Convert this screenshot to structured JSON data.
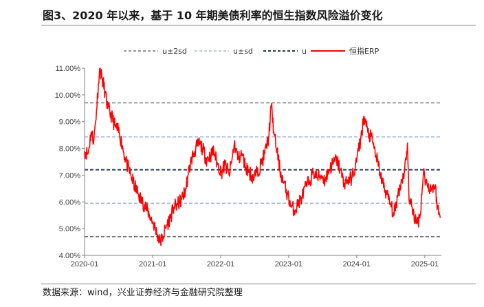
{
  "title": "图3、2020 年以来，基于 10 年期美债利率的恒生指数风险溢价变化",
  "source": "数据来源：wind，兴业证券经济与金融研究院整理",
  "chart_data": {
    "type": "line",
    "title": "图3、2020 年以来，基于 10 年期美债利率的恒生指数风险溢价变化",
    "x_ticks": [
      "2020-01",
      "2021-01",
      "2022-01",
      "2023-01",
      "2024-01",
      "2025-01"
    ],
    "y_ticks": [
      "4.00%",
      "5.00%",
      "6.00%",
      "7.00%",
      "8.00%",
      "9.00%",
      "10.00%",
      "11.00%"
    ],
    "ylim": [
      4.0,
      11.0
    ],
    "xlim": [
      "2020-01-01",
      "2025-03-31"
    ],
    "grid": false,
    "legend_position": "top",
    "legend": [
      "u±2sd",
      "u±sd",
      "u",
      "恒指ERP"
    ],
    "series": [
      {
        "name": "u±2sd",
        "style": "dashed",
        "color": "#595959",
        "values": [
          9.7,
          4.7
        ]
      },
      {
        "name": "u±sd",
        "style": "dashed",
        "color": "#8faadc",
        "values": [
          8.43,
          5.95
        ]
      },
      {
        "name": "u",
        "style": "dashed",
        "color": "#1f3864",
        "values": [
          7.2
        ]
      },
      {
        "name": "恒指ERP",
        "style": "solid",
        "color": "#ff0000",
        "x": [
          "2020-01-01",
          "2020-01-20",
          "2020-02-05",
          "2020-02-20",
          "2020-03-05",
          "2020-03-15",
          "2020-03-23",
          "2020-04-05",
          "2020-04-20",
          "2020-05-05",
          "2020-05-25",
          "2020-06-15",
          "2020-07-05",
          "2020-07-25",
          "2020-08-15",
          "2020-09-05",
          "2020-09-25",
          "2020-10-15",
          "2020-11-05",
          "2020-11-25",
          "2020-12-15",
          "2021-01-05",
          "2021-01-25",
          "2021-02-10",
          "2021-02-25",
          "2021-03-15",
          "2021-04-05",
          "2021-04-25",
          "2021-05-15",
          "2021-06-05",
          "2021-06-25",
          "2021-07-10",
          "2021-07-28",
          "2021-08-15",
          "2021-09-05",
          "2021-09-25",
          "2021-10-15",
          "2021-11-05",
          "2021-11-25",
          "2021-12-15",
          "2022-01-05",
          "2022-01-25",
          "2022-02-15",
          "2022-03-01",
          "2022-03-15",
          "2022-04-05",
          "2022-04-25",
          "2022-05-15",
          "2022-06-05",
          "2022-06-25",
          "2022-07-15",
          "2022-08-05",
          "2022-08-25",
          "2022-09-15",
          "2022-09-30",
          "2022-10-15",
          "2022-10-31",
          "2022-11-15",
          "2022-12-05",
          "2022-12-25",
          "2023-01-15",
          "2023-02-05",
          "2023-02-25",
          "2023-03-15",
          "2023-04-05",
          "2023-04-25",
          "2023-05-15",
          "2023-06-05",
          "2023-06-25",
          "2023-07-15",
          "2023-08-05",
          "2023-08-25",
          "2023-09-15",
          "2023-10-05",
          "2023-10-25",
          "2023-11-15",
          "2023-12-05",
          "2023-12-25",
          "2024-01-10",
          "2024-01-22",
          "2024-02-10",
          "2024-03-01",
          "2024-03-25",
          "2024-04-15",
          "2024-05-05",
          "2024-05-20",
          "2024-06-10",
          "2024-07-01",
          "2024-07-20",
          "2024-08-10",
          "2024-08-30",
          "2024-09-15",
          "2024-09-30",
          "2024-10-08",
          "2024-10-25",
          "2024-11-15",
          "2024-12-05",
          "2024-12-25",
          "2025-01-15",
          "2025-02-05",
          "2025-02-25",
          "2025-03-10",
          "2025-03-25"
        ],
        "values": [
          7.9,
          7.8,
          8.6,
          8.3,
          9.4,
          10.4,
          11.0,
          10.6,
          10.1,
          9.5,
          9.2,
          8.8,
          8.6,
          8.0,
          7.4,
          7.0,
          6.6,
          6.3,
          6.0,
          5.8,
          5.5,
          5.2,
          4.8,
          4.5,
          4.7,
          5.1,
          5.4,
          5.8,
          5.9,
          6.1,
          6.4,
          7.0,
          7.6,
          7.9,
          8.2,
          8.0,
          7.6,
          7.7,
          7.9,
          7.4,
          7.1,
          7.4,
          7.0,
          7.5,
          8.2,
          7.6,
          7.8,
          7.3,
          7.1,
          6.9,
          7.1,
          7.4,
          7.8,
          8.4,
          9.6,
          8.5,
          7.9,
          7.2,
          6.7,
          6.3,
          5.8,
          5.7,
          6.0,
          6.2,
          6.6,
          6.8,
          7.1,
          6.9,
          7.0,
          6.8,
          7.2,
          7.4,
          7.6,
          7.2,
          6.7,
          6.8,
          6.9,
          7.3,
          7.9,
          8.3,
          9.2,
          8.6,
          8.3,
          7.7,
          7.1,
          6.7,
          6.3,
          5.9,
          5.5,
          6.3,
          6.8,
          7.2,
          8.2,
          6.1,
          5.8,
          5.2,
          5.4,
          7.1,
          6.6,
          6.5,
          6.6,
          5.8,
          5.4
        ]
      }
    ]
  }
}
